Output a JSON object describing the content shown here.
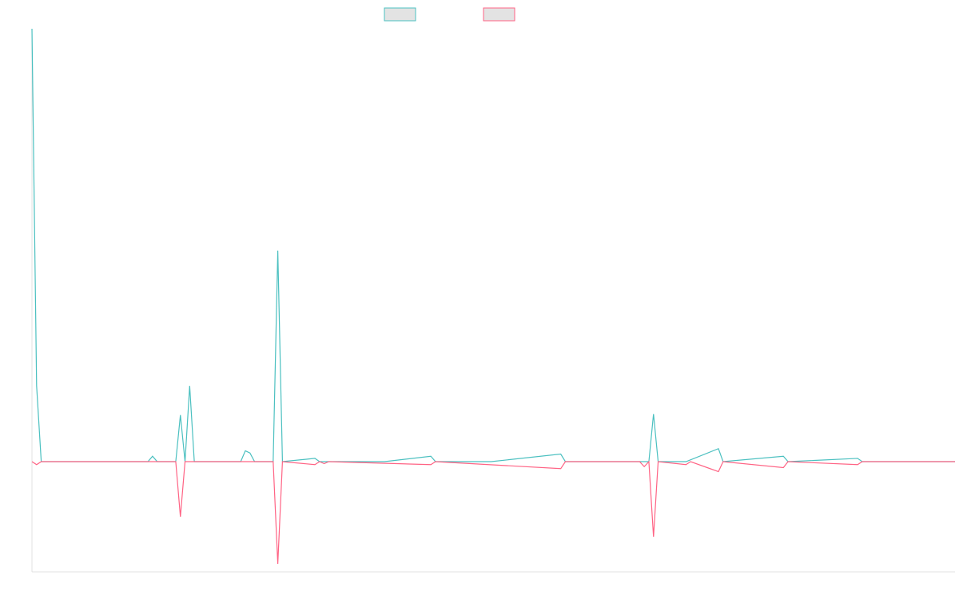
{
  "chart_data": {
    "type": "line",
    "title": "",
    "xlabel": "",
    "ylabel": "",
    "x_count": 200,
    "ylim": [
      -1.1,
      4.0
    ],
    "grid": false,
    "legend_position": "top-center",
    "series": [
      {
        "color": "#4bc0c0",
        "legend_fill": "#e3e3e3",
        "points": [
          [
            0,
            4.0
          ],
          [
            1,
            0.7
          ],
          [
            2,
            0.0
          ],
          [
            25,
            0.0
          ],
          [
            26,
            0.05
          ],
          [
            27,
            0.0
          ],
          [
            31,
            0.0
          ],
          [
            32,
            0.43
          ],
          [
            33,
            0.0
          ],
          [
            34,
            0.7
          ],
          [
            35,
            0.0
          ],
          [
            45,
            0.0
          ],
          [
            46,
            0.1
          ],
          [
            47,
            0.08
          ],
          [
            48,
            0.0
          ],
          [
            51,
            0.0
          ],
          [
            52,
            0.0
          ],
          [
            53,
            1.95
          ],
          [
            54,
            0.0
          ],
          [
            61,
            0.03
          ],
          [
            62,
            0.0
          ],
          [
            63,
            0.0
          ],
          [
            76,
            0.0
          ],
          [
            86,
            0.05
          ],
          [
            87,
            0.0
          ],
          [
            99,
            0.0
          ],
          [
            114,
            0.07
          ],
          [
            115,
            0.0
          ],
          [
            125,
            0.0
          ],
          [
            131,
            0.0
          ],
          [
            132,
            0.0
          ],
          [
            133,
            0.0
          ],
          [
            134,
            0.44
          ],
          [
            135,
            0.0
          ],
          [
            141,
            0.0
          ],
          [
            148,
            0.12
          ],
          [
            149,
            0.0
          ],
          [
            162,
            0.05
          ],
          [
            163,
            0.0
          ],
          [
            178,
            0.03
          ],
          [
            179,
            0.0
          ],
          [
            199,
            0.0
          ]
        ]
      },
      {
        "color": "#ff6384",
        "legend_fill": "#e3e3e3",
        "points": [
          [
            0,
            0.0
          ],
          [
            1,
            -0.03
          ],
          [
            2,
            0.0
          ],
          [
            31,
            0.0
          ],
          [
            32,
            -0.55
          ],
          [
            33,
            0.0
          ],
          [
            52,
            0.0
          ],
          [
            53,
            -1.02
          ],
          [
            54,
            0.0
          ],
          [
            61,
            -0.03
          ],
          [
            62,
            0.0
          ],
          [
            63,
            -0.02
          ],
          [
            64,
            0.0
          ],
          [
            86,
            -0.03
          ],
          [
            87,
            0.0
          ],
          [
            114,
            -0.07
          ],
          [
            115,
            0.0
          ],
          [
            131,
            0.0
          ],
          [
            132,
            -0.05
          ],
          [
            133,
            0.0
          ],
          [
            134,
            -0.75
          ],
          [
            135,
            0.0
          ],
          [
            141,
            -0.03
          ],
          [
            142,
            0.0
          ],
          [
            148,
            -0.1
          ],
          [
            149,
            0.0
          ],
          [
            162,
            -0.06
          ],
          [
            163,
            0.0
          ],
          [
            178,
            -0.03
          ],
          [
            179,
            0.0
          ],
          [
            199,
            0.0
          ]
        ]
      }
    ]
  }
}
